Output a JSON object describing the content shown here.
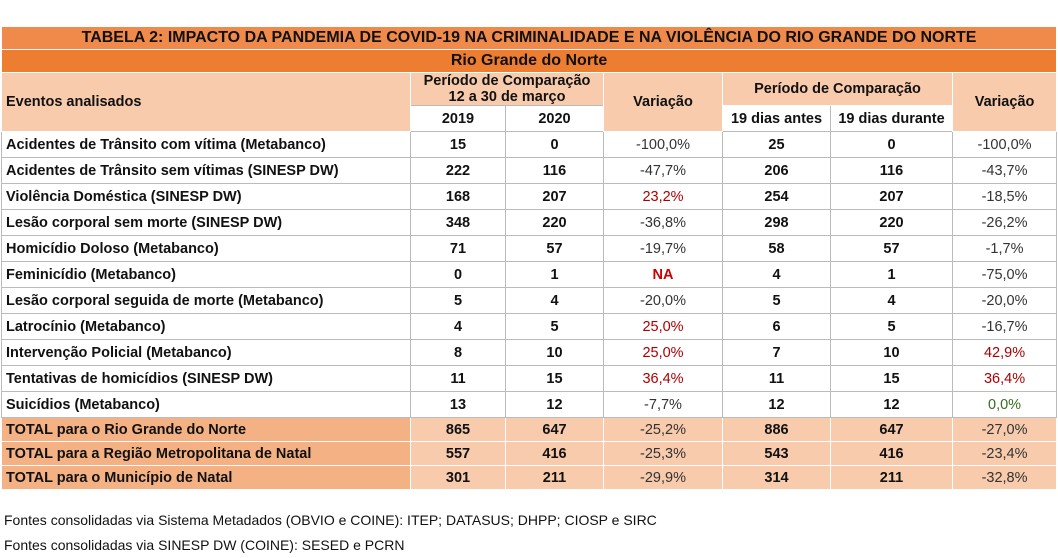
{
  "table": {
    "title": "TABELA 2: IMPACTO DA PANDEMIA DE COVID-19 NA CRIMINALIDADE E NA VIOLÊNCIA DO RIO GRANDE DO NORTE",
    "subtitle": "Rio Grande do Norte",
    "header": {
      "events": "Eventos analisados",
      "period_a": [
        "Período de Comparação",
        "12 a 30 de março"
      ],
      "variation_a": "Variação",
      "period_b": "Período de Comparação",
      "variation_b": "Variação",
      "years": [
        2019,
        2020
      ],
      "windows": [
        "19 dias antes",
        "19 dias durante"
      ]
    },
    "rows": [
      [
        "Acidentes de Trânsito com vítima (Metabanco)",
        15,
        0,
        "-100,0%",
        25,
        0,
        "-100,0%"
      ],
      [
        "Acidentes de Trânsito sem vítimas (SINESP DW)",
        222,
        116,
        "-47,7%",
        206,
        116,
        "-43,7%"
      ],
      [
        "Violência Doméstica (SINESP DW)",
        168,
        207,
        "23,2%",
        254,
        207,
        "-18,5%"
      ],
      [
        "Lesão corporal sem morte (SINESP DW)",
        348,
        220,
        "-36,8%",
        298,
        220,
        "-26,2%"
      ],
      [
        "Homicídio Doloso (Metabanco)",
        71,
        57,
        "-19,7%",
        58,
        57,
        "-1,7%"
      ],
      [
        "Feminicídio (Metabanco)",
        0,
        1,
        "NA",
        4,
        1,
        "-75,0%"
      ],
      [
        "Lesão corporal seguida de morte (Metabanco)",
        5,
        4,
        "-20,0%",
        5,
        4,
        "-20,0%"
      ],
      [
        "Latrocínio (Metabanco)",
        4,
        5,
        "25,0%",
        6,
        5,
        "-16,7%"
      ],
      [
        "Intervenção Policial (Metabanco)",
        8,
        10,
        "25,0%",
        7,
        10,
        "42,9%"
      ],
      [
        "Tentativas de homicídios (SINESP DW)",
        11,
        15,
        "36,4%",
        11,
        15,
        "36,4%"
      ],
      [
        "Suicídios (Metabanco)",
        13,
        12,
        "-7,7%",
        12,
        12,
        "0,0%"
      ]
    ],
    "totals": [
      [
        "TOTAL para o Rio Grande do Norte",
        865,
        647,
        "-25,2%",
        886,
        647,
        "-27,0%"
      ],
      [
        "TOTAL para a Região Metropolitana de Natal",
        557,
        416,
        "-25,3%",
        543,
        416,
        "-23,4%"
      ],
      [
        "TOTAL para o Município de Natal",
        301,
        211,
        "-29,9%",
        314,
        211,
        "-32,8%"
      ]
    ],
    "sources": [
      "Fontes consolidadas via Sistema Metadados (OBVIO e COINE): ITEP; DATASUS; DHPP; CIOSP e SIRC",
      "Fontes consolidadas via SINESP DW (COINE): SESED e PCRN"
    ]
  }
}
